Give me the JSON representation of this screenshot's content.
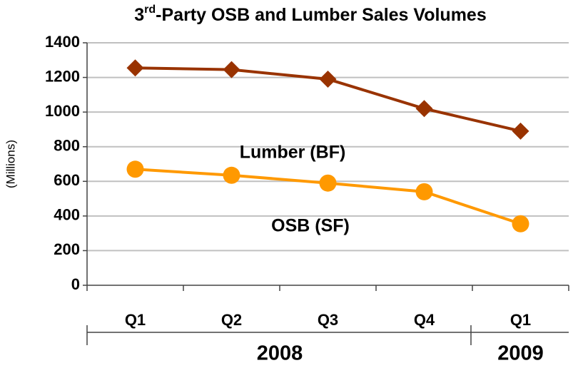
{
  "chart_data": {
    "type": "line",
    "title": [
      "3",
      "rd",
      "-Party OSB and Lumber Sales Volumes"
    ],
    "y_label": "(Millions)",
    "category_groups": [
      {
        "label": "2008",
        "categories": [
          "Q1",
          "Q2",
          "Q3",
          "Q4"
        ]
      },
      {
        "label": "2009",
        "categories": [
          "Q1"
        ]
      }
    ],
    "series": [
      {
        "name": "Lumber (BF)",
        "color": "#993300",
        "marker": "diamond",
        "values": [
          1255,
          1245,
          1190,
          1020,
          890
        ]
      },
      {
        "name": "OSB (SF)",
        "color": "#ff9900",
        "marker": "circle",
        "values": [
          670,
          635,
          590,
          540,
          355
        ]
      }
    ],
    "ylim": [
      0,
      1400
    ],
    "yticks": [
      0,
      200,
      400,
      600,
      800,
      1000,
      1200,
      1400
    ],
    "grid": true
  }
}
